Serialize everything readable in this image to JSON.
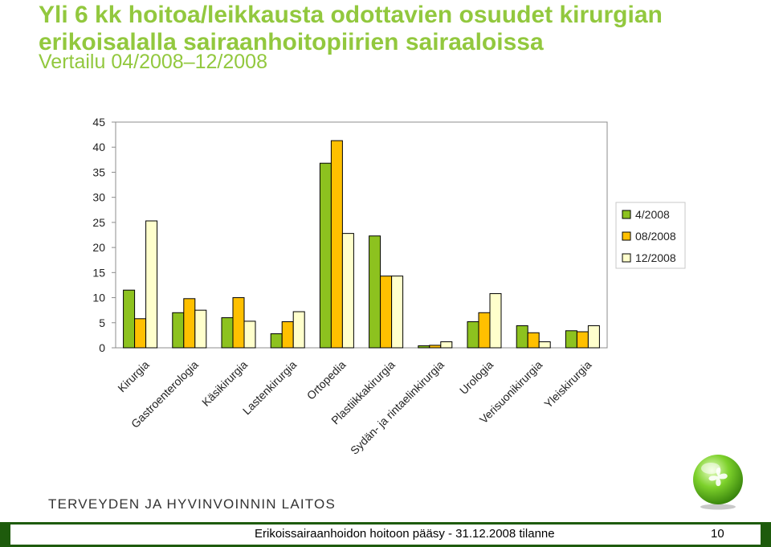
{
  "slide": {
    "title_lines": [
      "Yli 6 kk hoitoa/leikkausta odottavien osuudet kirurgian",
      "erikoisalalla sairaanhoitopiirien sairaaloissa"
    ],
    "subtitle": "Vertailu 04/2008–12/2008",
    "organization": "TERVEYDEN JA HYVINVOINNIN LAITOS",
    "footer": "Erikoissairaanhoidon hoitoon pääsy - 31.12.2008 tilanne",
    "page_number": "10",
    "logo_icon": "thl-green-sphere-logo-icon"
  },
  "colors": {
    "title": "#92C83E",
    "series": [
      "#8DC21F",
      "#FFC000",
      "#FFFFCC"
    ],
    "footer_bar": "#1E5B0C"
  },
  "chart_data": {
    "type": "bar",
    "categories": [
      "Kirurgia",
      "Gastroenterologia",
      "Käsikirurgia",
      "Lastenkirurgia",
      "Ortopedia",
      "Plastiikkakirurgia",
      "Sydän- ja rintaelinkirurgia",
      "Urologia",
      "Verisuonikirurgia",
      "Yleiskirurgia"
    ],
    "series": [
      {
        "name": "4/2008",
        "values": [
          11.5,
          7,
          6,
          2.8,
          36.8,
          22.3,
          0.4,
          5.2,
          4.4,
          3.4
        ]
      },
      {
        "name": "08/2008",
        "values": [
          5.8,
          9.8,
          10,
          5.2,
          41.3,
          14.3,
          0.5,
          7,
          3,
          3.2
        ]
      },
      {
        "name": "12/2008",
        "values": [
          25.3,
          7.5,
          5.3,
          7.2,
          22.8,
          14.3,
          1.2,
          10.8,
          1.2,
          4.4
        ]
      }
    ],
    "yticks": [
      "0",
      "5",
      "10",
      "15",
      "20",
      "25",
      "30",
      "35",
      "40",
      "45"
    ],
    "ylim": [
      0,
      45
    ],
    "grid": false,
    "legend": "right"
  }
}
